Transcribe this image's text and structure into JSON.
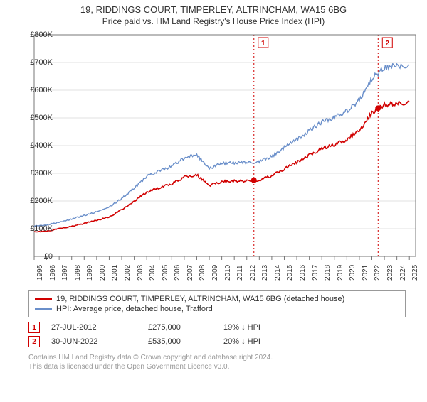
{
  "title": "19, RIDDINGS COURT, TIMPERLEY, ALTRINCHAM, WA15 6BG",
  "subtitle": "Price paid vs. HM Land Registry's House Price Index (HPI)",
  "chart": {
    "type": "line",
    "background_color": "#ffffff",
    "grid_color": "#e0e0e0",
    "border_color": "#777777",
    "x_years": [
      1995,
      1996,
      1997,
      1998,
      1999,
      2000,
      2001,
      2002,
      2003,
      2004,
      2005,
      2006,
      2007,
      2008,
      2009,
      2010,
      2011,
      2012,
      2013,
      2014,
      2015,
      2016,
      2017,
      2018,
      2019,
      2020,
      2021,
      2022,
      2023,
      2024,
      2025
    ],
    "xlim": [
      1995,
      2025.5
    ],
    "ylim": [
      0,
      800000
    ],
    "ytick_step": 100000,
    "yticks": [
      "£0",
      "£100K",
      "£200K",
      "£300K",
      "£400K",
      "£500K",
      "£600K",
      "£700K",
      "£800K"
    ],
    "label_fontsize": 11,
    "xlabel_fontsize": 10,
    "series": [
      {
        "name": "HPI: Average price, detached house, Trafford",
        "color": "#6a8fca",
        "width": 1.4,
        "values_by_year": {
          "1995": 110000,
          "1996": 113000,
          "1997": 124000,
          "1998": 135000,
          "1999": 148000,
          "2000": 161000,
          "2001": 178000,
          "2002": 209000,
          "2003": 247000,
          "2004": 289000,
          "2005": 308000,
          "2006": 326000,
          "2007": 355000,
          "2008": 367000,
          "2009": 318000,
          "2010": 336000,
          "2011": 338000,
          "2012": 339000,
          "2013": 343000,
          "2014": 361000,
          "2015": 393000,
          "2016": 421000,
          "2017": 454000,
          "2018": 485000,
          "2019": 501000,
          "2020": 525000,
          "2021": 564000,
          "2022": 642000,
          "2023": 681000,
          "2024": 688000,
          "2025": 692000
        }
      },
      {
        "name": "19, RIDDINGS COURT, TIMPERLEY, ALTRINCHAM, WA15 6BG (detached house)",
        "color": "#d10000",
        "width": 1.6,
        "values_by_year": {
          "1995": 89000,
          "1996": 91000,
          "1997": 100000,
          "1998": 109000,
          "1999": 119000,
          "2000": 130000,
          "2001": 143000,
          "2002": 168000,
          "2003": 199000,
          "2004": 232000,
          "2005": 248000,
          "2006": 262000,
          "2007": 286000,
          "2008": 295000,
          "2009": 256000,
          "2010": 270000,
          "2011": 272000,
          "2012": 272000,
          "2013": 276000,
          "2014": 291000,
          "2015": 316000,
          "2016": 339000,
          "2017": 365000,
          "2018": 390000,
          "2019": 403000,
          "2020": 422000,
          "2021": 454000,
          "2022": 517000,
          "2023": 548000,
          "2024": 553000,
          "2025": 557000
        }
      }
    ],
    "sale_markers": [
      {
        "idx": "1",
        "year": 2012.57,
        "price": 275000,
        "color": "#d10000"
      },
      {
        "idx": "2",
        "year": 2022.5,
        "price": 535000,
        "color": "#d10000"
      }
    ],
    "ref_line_color": "#d10000",
    "marker_fill": "#d10000",
    "marker_box_border": "#d10000",
    "marker_box_bg": "#ffffff"
  },
  "legend": {
    "series1_label": "19, RIDDINGS COURT, TIMPERLEY, ALTRINCHAM, WA15 6BG (detached house)",
    "series1_color": "#d10000",
    "series2_label": "HPI: Average price, detached house, Trafford",
    "series2_color": "#6a8fca"
  },
  "markers_table": {
    "rows": [
      {
        "idx": "1",
        "date": "27-JUL-2012",
        "price": "£275,000",
        "pct": "19% ↓ HPI"
      },
      {
        "idx": "2",
        "date": "30-JUN-2022",
        "price": "£535,000",
        "pct": "20% ↓ HPI"
      }
    ]
  },
  "attribution": {
    "line1": "Contains HM Land Registry data © Crown copyright and database right 2024.",
    "line2": "This data is licensed under the Open Government Licence v3.0."
  }
}
